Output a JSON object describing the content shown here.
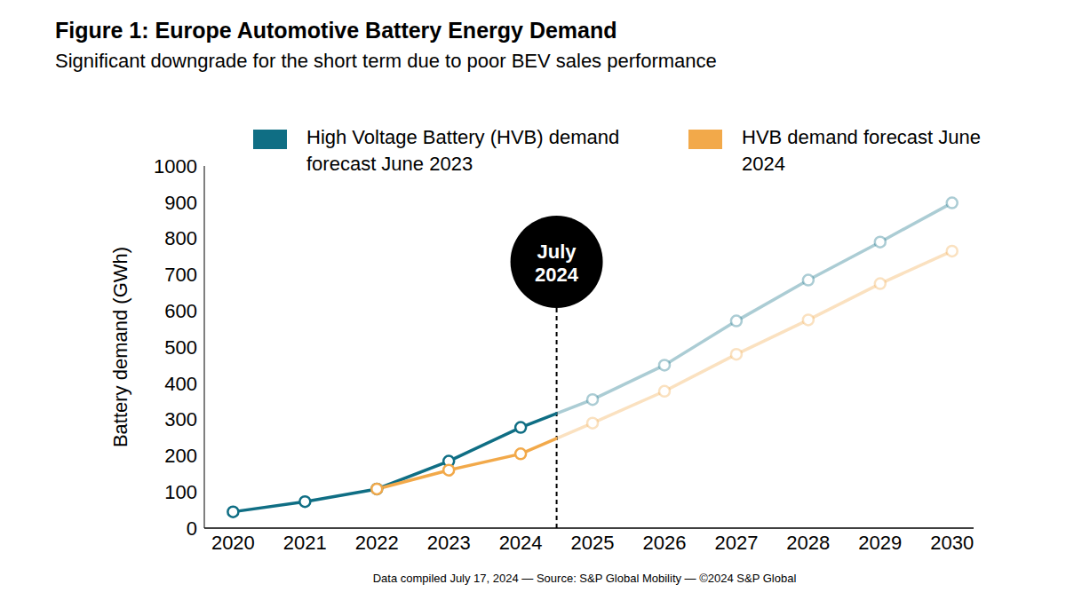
{
  "chart_data": {
    "type": "line",
    "title": "Figure 1: Europe Automotive Battery Energy Demand",
    "subtitle": "Significant downgrade for the short term due to poor BEV sales performance",
    "x": [
      2020,
      2021,
      2022,
      2023,
      2024,
      2025,
      2026,
      2027,
      2028,
      2029,
      2030
    ],
    "series": [
      {
        "name": "High Voltage Battery (HVB) demand forecast June 2023",
        "color": "#0f6e84",
        "marker": "circle",
        "values": [
          45,
          73,
          108,
          185,
          278,
          355,
          450,
          572,
          685,
          790,
          898
        ]
      },
      {
        "name": "HVB demand forecast June 2024",
        "color": "#f2a94a",
        "marker": "circle",
        "values": [
          null,
          null,
          108,
          160,
          205,
          290,
          378,
          480,
          575,
          675,
          765
        ]
      }
    ],
    "xlim": [
      2019.6,
      2030.3
    ],
    "xticks": [
      2020,
      2021,
      2022,
      2023,
      2024,
      2025,
      2026,
      2027,
      2028,
      2029,
      2030
    ],
    "ylim": [
      0,
      1000
    ],
    "yticks": [
      0,
      100,
      200,
      300,
      400,
      500,
      600,
      700,
      800,
      900,
      1000
    ],
    "y_label": "Battery demand (GWh)",
    "annotations": [
      {
        "text": "July 2024",
        "x": 2024.5
      }
    ],
    "footer": "Data compiled July 17, 2024 — Source: S&P Global Mobility — ©2024 S&P Global",
    "grid": false,
    "legend": "top"
  }
}
